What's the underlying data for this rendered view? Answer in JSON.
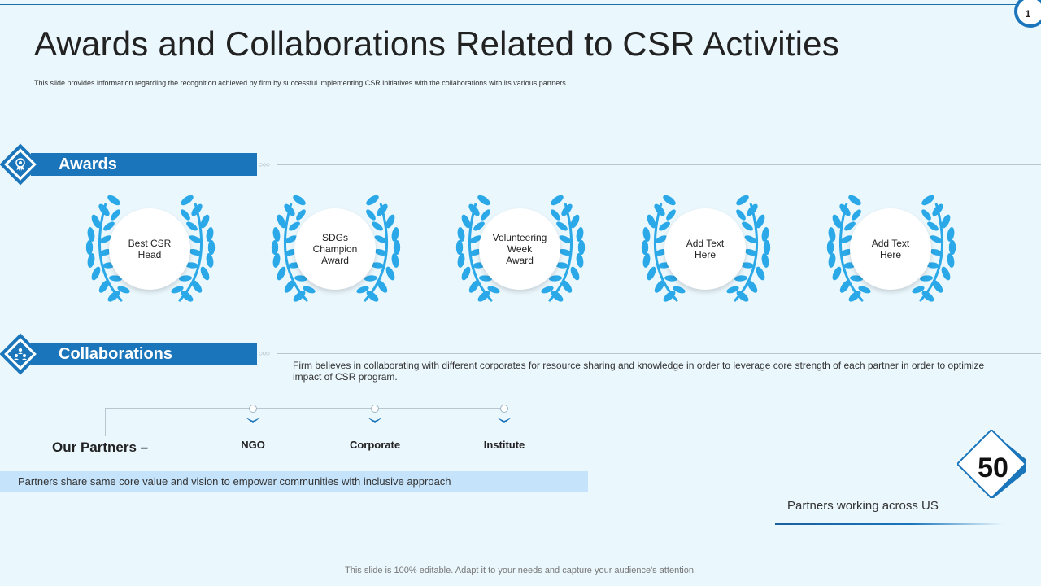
{
  "page_number": "1",
  "title": "Awards and Collaborations Related to CSR Activities",
  "subtitle": "This slide provides information regarding the recognition achieved by firm by successful implementing CSR initiatives with the collaborations with its various partners.",
  "awards_section": {
    "label": "Awards",
    "icon": "award-ribbon-icon",
    "items": [
      {
        "lines": [
          "Best CSR",
          "Head"
        ]
      },
      {
        "lines": [
          "SDGs",
          "Champion",
          "Award"
        ]
      },
      {
        "lines": [
          "Volunteering",
          "Week",
          "Award"
        ]
      },
      {
        "lines": [
          "Add Text",
          "Here"
        ]
      },
      {
        "lines": [
          "Add Text",
          "Here"
        ]
      }
    ]
  },
  "collaborations_section": {
    "label": "Collaborations",
    "icon": "people-network-icon",
    "description": "Firm believes in collaborating with different corporates for resource sharing and knowledge in order to leverage core strength of each partner in order to optimize impact of CSR program.",
    "partners_heading": "Our Partners –",
    "partners": [
      "NGO",
      "Corporate",
      "Institute"
    ],
    "banner": "Partners share same core value and vision to empower communities with inclusive approach"
  },
  "stat": {
    "value": "50",
    "label": "Partners working across US"
  },
  "footer": "This slide is 100% editable. Adapt it to your needs and capture your audience's attention.",
  "colors": {
    "primary": "#1b75bb",
    "wreath": "#2aa8e8",
    "background": "#eaf7fd",
    "banner": "#c5e3fa"
  }
}
